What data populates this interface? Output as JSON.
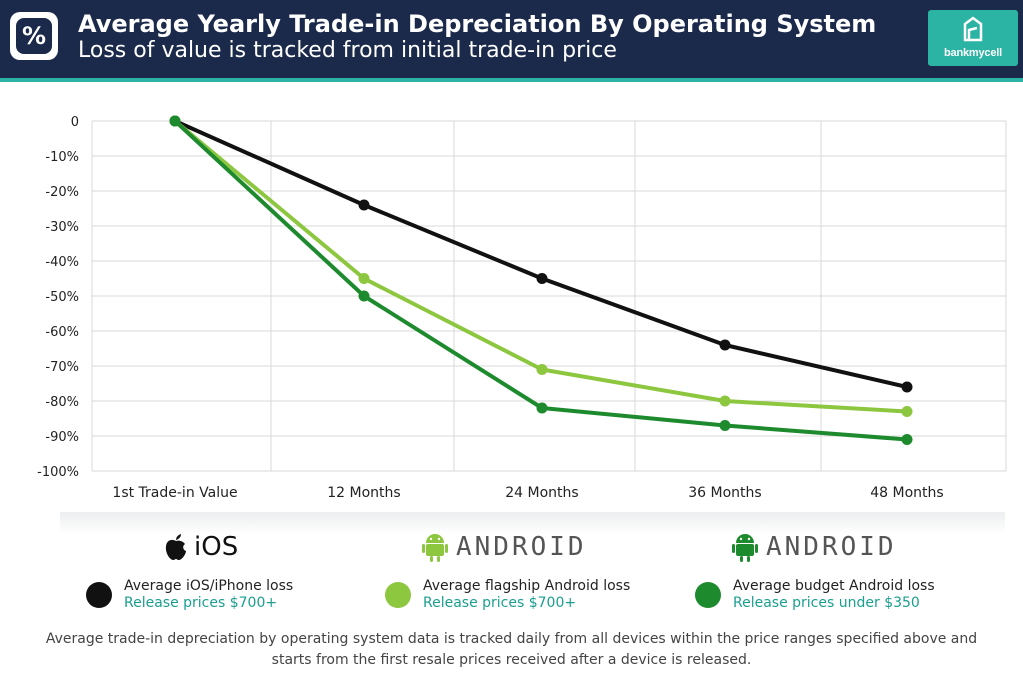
{
  "header": {
    "title": "Average Yearly Trade-in Depreciation By Operating System",
    "subtitle": "Loss of value is tracked from initial trade-in price",
    "logo_icon": "percent-icon",
    "brand": "bankmycell",
    "colors": {
      "background": "#1b2a4a",
      "accent": "#2bb3a3"
    }
  },
  "chart_data": {
    "type": "line",
    "categories": [
      "1st Trade-in Value",
      "12 Months",
      "24 Months",
      "36 Months",
      "48 Months"
    ],
    "y_ticks": [
      "0",
      "-10%",
      "-20%",
      "-30%",
      "-40%",
      "-50%",
      "-60%",
      "-70%",
      "-80%",
      "-90%",
      "-100%"
    ],
    "ylim": [
      -100,
      0
    ],
    "grid": true,
    "series": [
      {
        "name": "Average iOS/iPhone loss",
        "color": "#111111",
        "values": [
          0,
          -24,
          -45,
          -64,
          -76
        ]
      },
      {
        "name": "Average flagship Android loss",
        "color": "#8dc63f",
        "values": [
          0,
          -45,
          -71,
          -80,
          -83
        ]
      },
      {
        "name": "Average budget Android loss",
        "color": "#1e8a2e",
        "values": [
          0,
          -50,
          -82,
          -87,
          -91
        ]
      }
    ]
  },
  "platforms": [
    {
      "icon": "apple-icon",
      "label": "iOS"
    },
    {
      "icon": "android-robot-icon",
      "label": "ANDROID"
    },
    {
      "icon": "android-robot-icon",
      "label": "ANDROID"
    }
  ],
  "legend": [
    {
      "label": "Average iOS/iPhone loss",
      "sub": "Release prices $700+",
      "color": "#111111"
    },
    {
      "label": "Average flagship Android loss",
      "sub": "Release prices $700+",
      "color": "#8dc63f"
    },
    {
      "label": "Average budget Android loss",
      "sub": "Release prices under $350",
      "color": "#1e8a2e"
    }
  ],
  "footnote": "Average trade-in depreciation by operating system data is tracked daily from all devices within the price ranges specified above and starts from the first resale prices received after a device is released."
}
